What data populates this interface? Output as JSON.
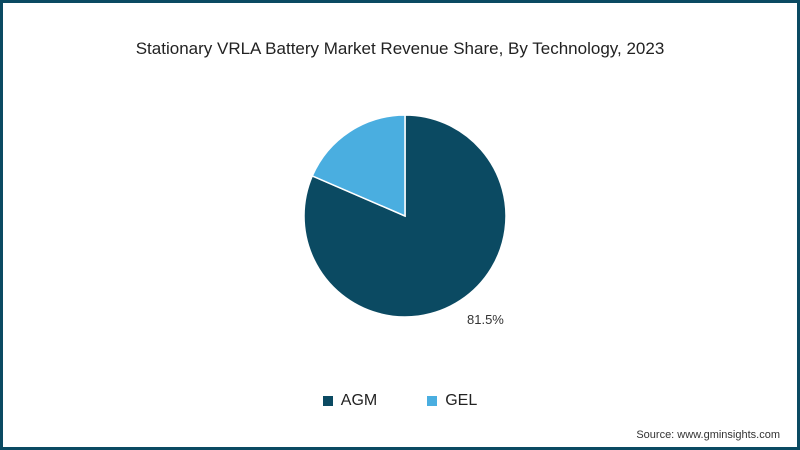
{
  "chart_data": {
    "type": "pie",
    "title": "Stationary VRLA Battery Market Revenue Share, By Technology, 2023",
    "categories": [
      "AGM",
      "GEL"
    ],
    "values": [
      81.5,
      18.5
    ],
    "colors": [
      "#0b4a62",
      "#4aaee0"
    ],
    "data_labels": [
      "81.5%",
      ""
    ],
    "legend_position": "bottom",
    "source": "Source: www.gminsights.com"
  },
  "labels": {
    "agm_pct": "81.5%"
  },
  "legend": {
    "items": [
      {
        "label": "AGM",
        "color": "#0b4a62"
      },
      {
        "label": "GEL",
        "color": "#4aaee0"
      }
    ]
  }
}
